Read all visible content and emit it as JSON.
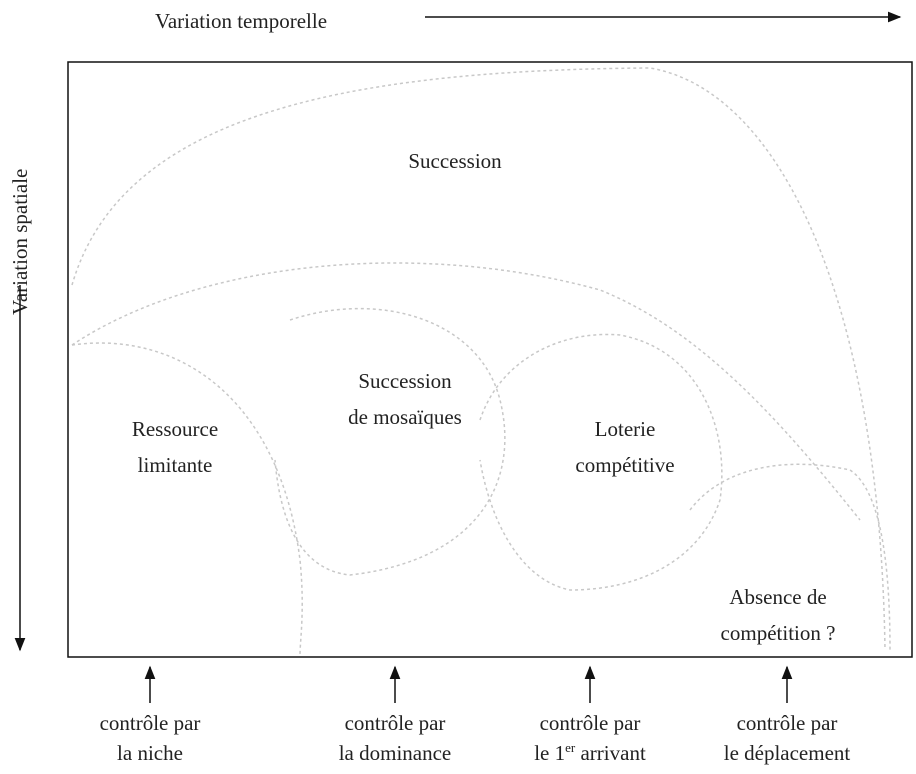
{
  "top_axis": "Variation temporelle",
  "left_axis": "Variation spatiale",
  "regions": [
    {
      "lines": [
        "Succession"
      ]
    },
    {
      "lines": [
        "Succession",
        "de mosaïques"
      ]
    },
    {
      "lines": [
        "Ressource",
        "limitante"
      ]
    },
    {
      "lines": [
        "Loterie",
        "compétitive"
      ]
    },
    {
      "lines": [
        "Absence de",
        "compétition ?"
      ]
    }
  ],
  "controls": [
    {
      "line1": "contrôle par",
      "line2": "la niche"
    },
    {
      "line1": "contrôle par",
      "line2": "la dominance"
    },
    {
      "line1": "contrôle par",
      "line2": "le 1",
      "sup": "er",
      "after": " arrivant"
    },
    {
      "line1": "contrôle par",
      "line2": "le déplacement"
    }
  ]
}
